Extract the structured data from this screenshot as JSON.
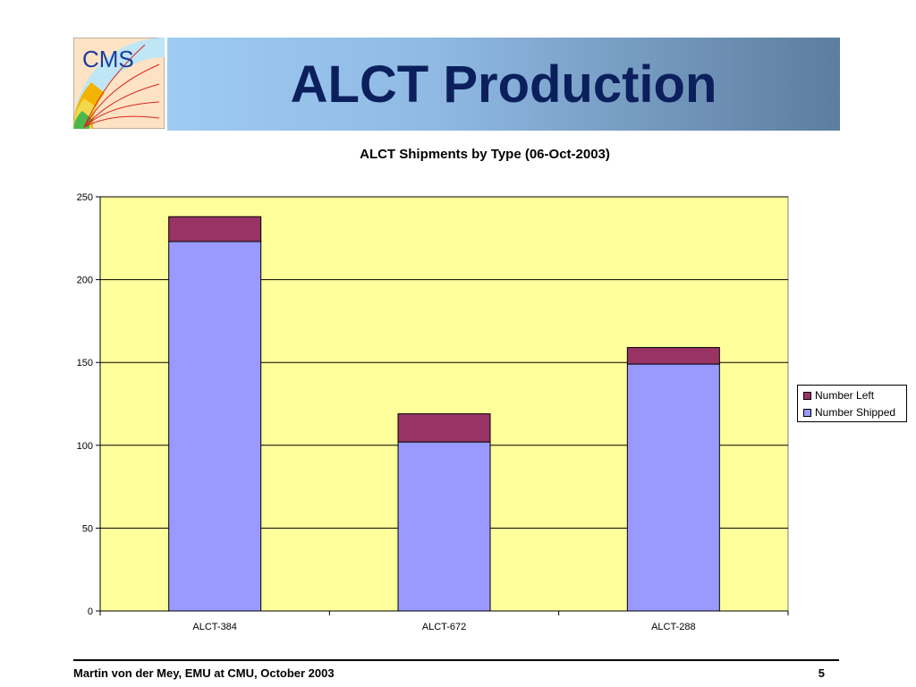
{
  "slide": {
    "title": "ALCT Production",
    "logo_text": "CMS",
    "footer_left": "Martin von der Mey, EMU at CMU, October 2003",
    "page_number": "5"
  },
  "colors": {
    "banner_start": "#9ecbf2",
    "banner_end": "#5d7d9e",
    "title": "#0b1f5c",
    "plot_bg": "#ffff9c",
    "number_shipped": "#9999ff",
    "number_left": "#993366"
  },
  "chart_data": {
    "type": "bar",
    "stacked": true,
    "title": "ALCT Shipments by Type (06-Oct-2003)",
    "categories": [
      "ALCT-384",
      "ALCT-672",
      "ALCT-288"
    ],
    "series": [
      {
        "name": "Number Shipped",
        "values": [
          223,
          102,
          149
        ],
        "color": "#9999ff"
      },
      {
        "name": "Number Left",
        "values": [
          15,
          17,
          10
        ],
        "color": "#993366"
      }
    ],
    "yticks": [
      "0",
      "50",
      "100",
      "150",
      "200",
      "250"
    ],
    "ylim": [
      0,
      250
    ],
    "grid": true,
    "legend": "right"
  }
}
